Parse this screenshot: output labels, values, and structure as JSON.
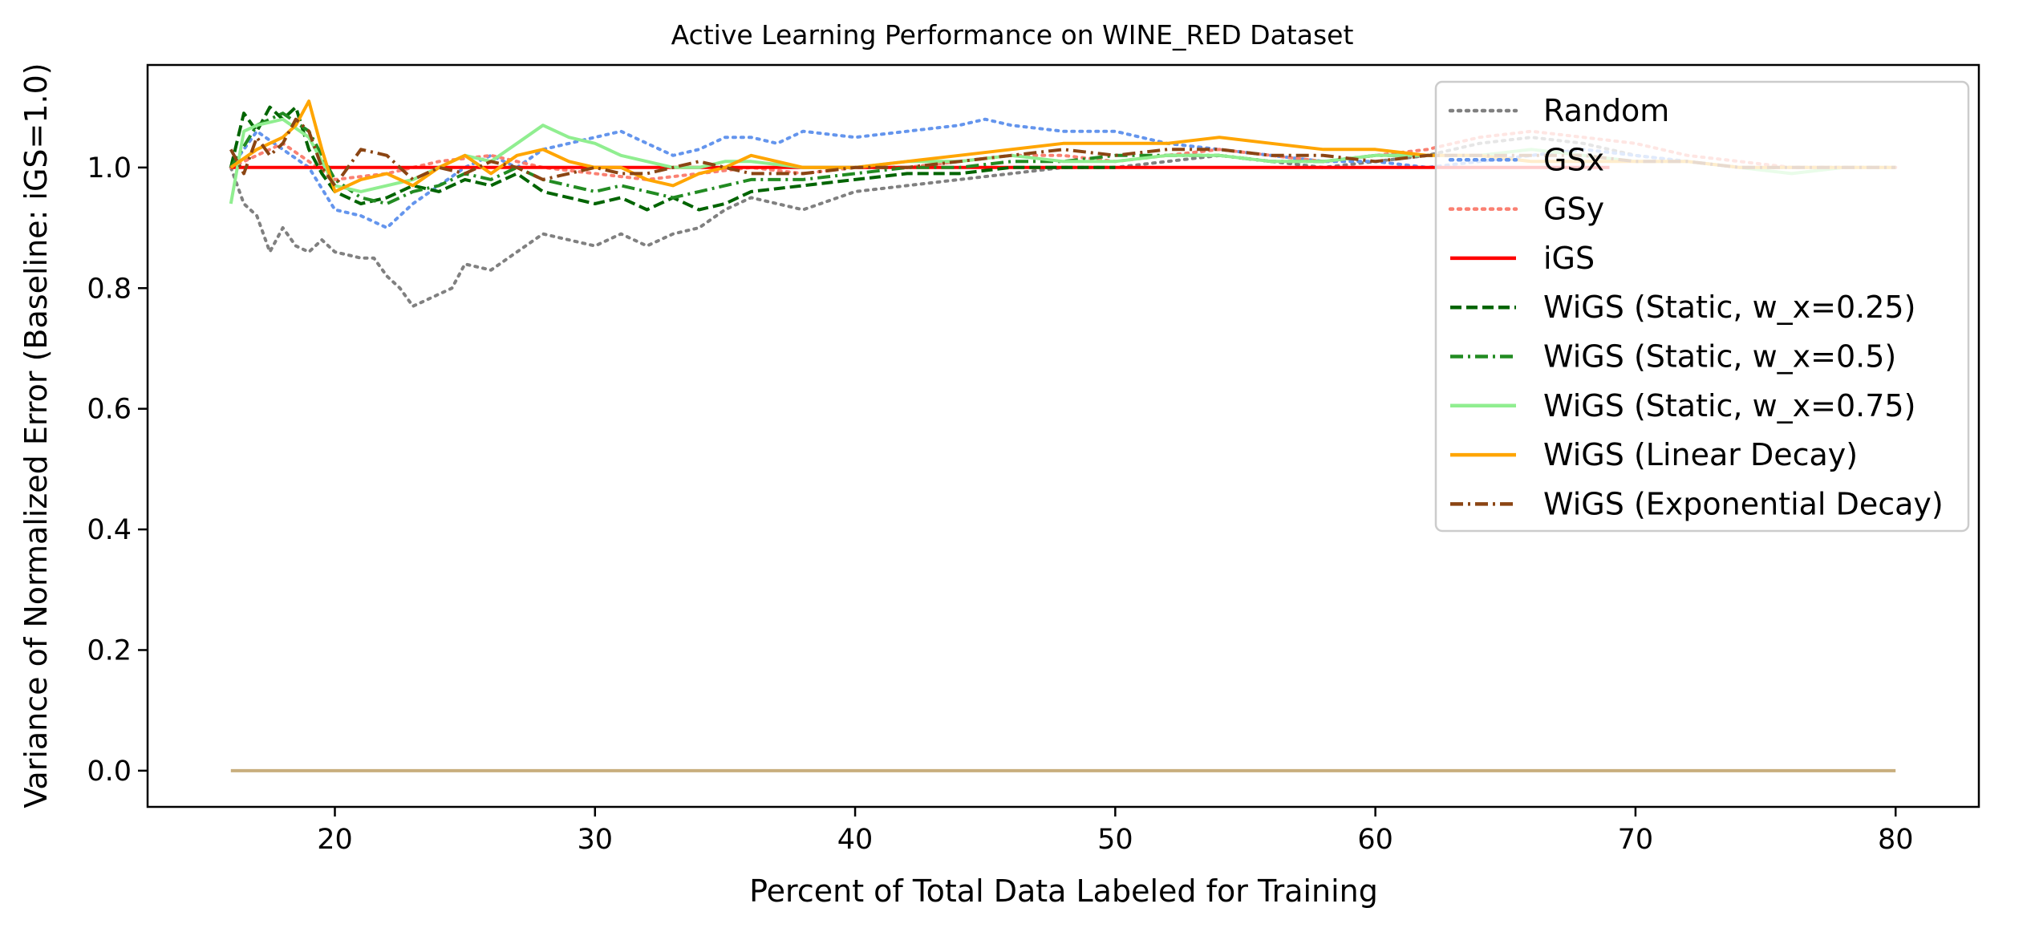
{
  "chart_data": {
    "type": "line",
    "title": "Active Learning Performance on WINE_RED Dataset",
    "xlabel": "Percent of Total Data Labeled for Training",
    "ylabel": "Variance of Normalized Error (Baseline: iGS=1.0)",
    "xlim": [
      12.8,
      83.2
    ],
    "ylim": [
      -0.06,
      1.17
    ],
    "xticks": [
      20,
      30,
      40,
      50,
      60,
      70,
      80
    ],
    "yticks": [
      0.0,
      0.2,
      0.4,
      0.6,
      0.8,
      1.0
    ],
    "ytick_labels": [
      "0.0",
      "0.2",
      "0.4",
      "0.6",
      "0.8",
      "1.0"
    ],
    "grid": false,
    "legend_position": "upper right",
    "series": [
      {
        "name": "Random",
        "color": "#808080",
        "style": "dotted",
        "x": [
          16,
          16.5,
          17,
          17.5,
          18,
          18.5,
          19,
          19.5,
          20,
          21,
          21.5,
          22,
          22.5,
          23,
          23.5,
          24,
          24.5,
          25,
          26,
          27,
          28,
          29,
          30,
          31,
          32,
          33,
          34,
          35,
          36,
          38,
          40,
          42,
          44,
          46,
          48,
          50,
          52,
          54,
          56,
          58,
          60,
          62,
          64,
          66,
          68,
          70,
          72,
          74,
          76,
          78,
          80
        ],
        "y": [
          1.0,
          0.94,
          0.92,
          0.86,
          0.9,
          0.87,
          0.86,
          0.88,
          0.86,
          0.85,
          0.85,
          0.82,
          0.8,
          0.77,
          0.78,
          0.79,
          0.8,
          0.84,
          0.83,
          0.86,
          0.89,
          0.88,
          0.87,
          0.89,
          0.87,
          0.89,
          0.9,
          0.93,
          0.95,
          0.93,
          0.96,
          0.97,
          0.98,
          0.99,
          1.0,
          1.0,
          1.01,
          1.02,
          1.01,
          1.0,
          1.01,
          1.02,
          1.04,
          1.05,
          1.04,
          1.02,
          1.01,
          1.0,
          1.0,
          1.0,
          1.0
        ]
      },
      {
        "name": "GSx",
        "color": "#6495ED",
        "style": "dotted",
        "x": [
          16,
          17,
          18,
          19,
          20,
          21,
          22,
          23,
          24,
          25,
          26,
          27,
          28,
          29,
          30,
          31,
          32,
          33,
          34,
          35,
          36,
          37,
          38,
          40,
          42,
          44,
          45,
          46,
          48,
          50,
          52,
          54,
          56,
          58,
          60,
          62,
          64,
          66,
          68,
          70,
          72,
          74,
          76,
          78,
          80
        ],
        "y": [
          1.0,
          1.06,
          1.03,
          1.0,
          0.93,
          0.92,
          0.9,
          0.94,
          0.97,
          1.0,
          1.02,
          1.0,
          1.03,
          1.04,
          1.05,
          1.06,
          1.04,
          1.02,
          1.03,
          1.05,
          1.05,
          1.04,
          1.06,
          1.05,
          1.06,
          1.07,
          1.08,
          1.07,
          1.06,
          1.06,
          1.04,
          1.03,
          1.02,
          1.01,
          1.01,
          1.0,
          1.01,
          1.02,
          1.03,
          1.02,
          1.01,
          1.0,
          1.0,
          1.0,
          1.0
        ]
      },
      {
        "name": "GSy",
        "color": "#FA8072",
        "style": "dotted",
        "x": [
          16,
          17,
          18,
          19,
          20,
          22,
          24,
          26,
          28,
          30,
          32,
          34,
          36,
          38,
          40,
          42,
          44,
          46,
          48,
          50,
          52,
          54,
          56,
          58,
          60,
          62,
          64,
          66,
          68,
          70,
          72,
          74,
          76,
          78,
          80
        ],
        "y": [
          1.0,
          1.02,
          1.04,
          1.01,
          0.98,
          0.99,
          1.01,
          1.02,
          1.0,
          0.99,
          0.98,
          0.99,
          1.0,
          0.99,
          1.0,
          1.0,
          1.01,
          1.02,
          1.02,
          1.01,
          1.02,
          1.03,
          1.02,
          1.01,
          1.02,
          1.03,
          1.05,
          1.06,
          1.05,
          1.04,
          1.02,
          1.01,
          1.0,
          1.0,
          1.0
        ]
      },
      {
        "name": "iGS",
        "color": "#FF0000",
        "style": "solid",
        "x": [
          16,
          69
        ],
        "y": [
          1.0,
          1.0
        ]
      },
      {
        "name": "WiGS (Static, w_x=0.25)",
        "color": "#006400",
        "style": "dashed",
        "x": [
          16,
          16.5,
          17,
          17.5,
          18,
          18.5,
          19,
          19.5,
          20,
          21,
          22,
          23,
          24,
          25,
          26,
          27,
          28,
          29,
          30,
          31,
          32,
          33,
          34,
          35,
          36,
          38,
          40,
          42,
          44,
          46,
          48,
          50
        ],
        "y": [
          1.0,
          1.09,
          1.06,
          1.1,
          1.08,
          1.1,
          1.03,
          0.99,
          0.96,
          0.94,
          0.95,
          0.97,
          0.96,
          0.98,
          0.97,
          0.99,
          0.96,
          0.95,
          0.94,
          0.95,
          0.93,
          0.95,
          0.93,
          0.94,
          0.96,
          0.97,
          0.98,
          0.99,
          0.99,
          1.0,
          1.0,
          1.0
        ]
      },
      {
        "name": "WiGS (Static, w_x=0.5)",
        "color": "#228B22",
        "style": "dashdot",
        "x": [
          16,
          17,
          18,
          19,
          20,
          21,
          22,
          23,
          24,
          25,
          26,
          27,
          28,
          29,
          30,
          31,
          32,
          33,
          34,
          35,
          36,
          38,
          40,
          42,
          44,
          46,
          48,
          50,
          52,
          54,
          56,
          58,
          60,
          62
        ],
        "y": [
          1.0,
          1.07,
          1.09,
          1.06,
          0.98,
          0.95,
          0.94,
          0.96,
          0.97,
          0.99,
          0.98,
          1.0,
          0.98,
          0.97,
          0.96,
          0.97,
          0.96,
          0.95,
          0.96,
          0.97,
          0.98,
          0.98,
          0.99,
          1.0,
          1.0,
          1.01,
          1.01,
          1.02,
          1.02,
          1.02,
          1.01,
          1.01,
          1.02,
          1.02
        ]
      },
      {
        "name": "WiGS (Static, w_x=0.75)",
        "color": "#90EE90",
        "style": "solid",
        "x": [
          16,
          16.5,
          17,
          18,
          19,
          20,
          21,
          22,
          23,
          24,
          25,
          26,
          27,
          28,
          29,
          30,
          31,
          32,
          33,
          34,
          35,
          36,
          38,
          40,
          42,
          44,
          46,
          48,
          50,
          52,
          54,
          56,
          58,
          60,
          62,
          64,
          66,
          68,
          70,
          72,
          74,
          76,
          78,
          80
        ],
        "y": [
          0.94,
          1.06,
          1.07,
          1.08,
          1.05,
          0.97,
          0.96,
          0.97,
          0.98,
          1.0,
          1.02,
          1.01,
          1.04,
          1.07,
          1.05,
          1.04,
          1.02,
          1.01,
          1.0,
          1.0,
          1.01,
          1.01,
          1.0,
          1.0,
          1.01,
          1.01,
          1.02,
          1.01,
          1.01,
          1.02,
          1.02,
          1.01,
          1.01,
          1.02,
          1.02,
          1.02,
          1.03,
          1.02,
          1.01,
          1.01,
          1.0,
          0.99,
          1.0,
          1.0
        ]
      },
      {
        "name": "WiGS (Linear Decay)",
        "color": "#FFA500",
        "style": "solid",
        "x": [
          16,
          17,
          18,
          18.5,
          19,
          19.5,
          20,
          21,
          22,
          23,
          24,
          25,
          26,
          27,
          28,
          29,
          30,
          31,
          32,
          33,
          34,
          35,
          36,
          38,
          40,
          42,
          44,
          46,
          48,
          50,
          52,
          54,
          56,
          58,
          60,
          62,
          64,
          66,
          68,
          70,
          72,
          74,
          76,
          78,
          80
        ],
        "y": [
          1.0,
          1.03,
          1.05,
          1.07,
          1.11,
          1.03,
          0.96,
          0.98,
          0.99,
          0.97,
          1.0,
          1.02,
          0.99,
          1.02,
          1.03,
          1.01,
          1.0,
          1.0,
          0.98,
          0.97,
          0.99,
          1.0,
          1.02,
          1.0,
          1.0,
          1.01,
          1.02,
          1.03,
          1.04,
          1.04,
          1.04,
          1.05,
          1.04,
          1.03,
          1.03,
          1.02,
          1.02,
          1.01,
          1.01,
          1.01,
          1.01,
          1.0,
          1.0,
          1.0,
          1.0
        ]
      },
      {
        "name": "WiGS (Exponential Decay)",
        "color": "#8B4513",
        "style": "dashdot",
        "x": [
          16,
          16.5,
          17,
          17.5,
          18,
          18.5,
          19,
          19.5,
          20,
          21,
          22,
          23,
          24,
          25,
          26,
          27,
          28,
          29,
          30,
          31,
          32,
          33,
          34,
          35,
          36,
          38,
          40,
          42,
          44,
          46,
          48,
          50,
          52,
          54,
          56,
          58,
          60,
          62,
          64,
          66,
          68,
          70,
          72,
          74,
          76,
          78,
          80
        ],
        "y": [
          1.03,
          0.99,
          1.05,
          1.02,
          1.04,
          1.08,
          1.06,
          1.0,
          0.97,
          1.03,
          1.02,
          0.98,
          1.0,
          0.99,
          1.01,
          1.0,
          0.98,
          0.99,
          1.0,
          0.99,
          0.99,
          1.0,
          1.01,
          1.0,
          0.99,
          0.99,
          1.0,
          1.0,
          1.01,
          1.02,
          1.03,
          1.02,
          1.03,
          1.03,
          1.02,
          1.02,
          1.01,
          1.02,
          1.02,
          1.02,
          1.02,
          1.01,
          1.01,
          1.0,
          1.0,
          1.0,
          1.0
        ]
      },
      {
        "color": "#C8AE7D",
        "style": "solid",
        "x": [
          16,
          80
        ],
        "y": [
          0.0,
          0.0
        ]
      }
    ]
  }
}
